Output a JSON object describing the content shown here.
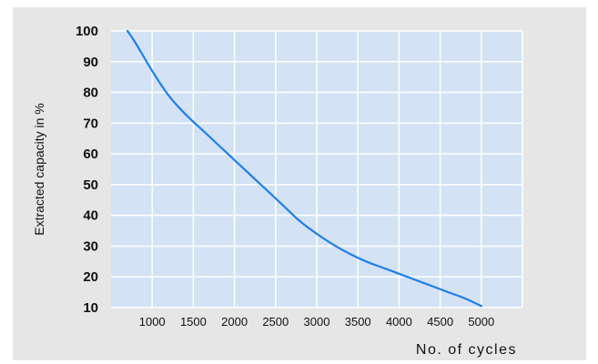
{
  "chart_data": {
    "type": "line",
    "title": "",
    "xlabel": "No. of cycles",
    "ylabel": "Extracted capacity  in %",
    "xlim": [
      500,
      5500
    ],
    "ylim": [
      10,
      100
    ],
    "x_ticks": [
      1000,
      1500,
      2000,
      2500,
      3000,
      3500,
      4000,
      4500,
      5000
    ],
    "y_ticks": [
      10,
      20,
      30,
      40,
      50,
      60,
      70,
      80,
      90,
      100
    ],
    "grid": true,
    "legend": "none",
    "colors": {
      "plot_background": "#d3e2f5",
      "grid": "#ffffff",
      "line": "#1f7fe8",
      "frame_background": "#e6e6e6"
    },
    "series": [
      {
        "x": [
          700,
          800,
          1000,
          1200,
          1400,
          1600,
          1800,
          2000,
          2200,
          2400,
          2600,
          2800,
          3000,
          3200,
          3400,
          3600,
          3800,
          4000,
          4200,
          4400,
          4600,
          4800,
          5000
        ],
        "values": [
          100,
          96,
          87,
          79,
          73,
          68,
          63,
          58,
          53,
          48,
          43,
          38,
          34,
          30.5,
          27.5,
          25,
          23,
          21,
          19,
          17,
          15,
          13,
          10.5
        ]
      }
    ]
  }
}
